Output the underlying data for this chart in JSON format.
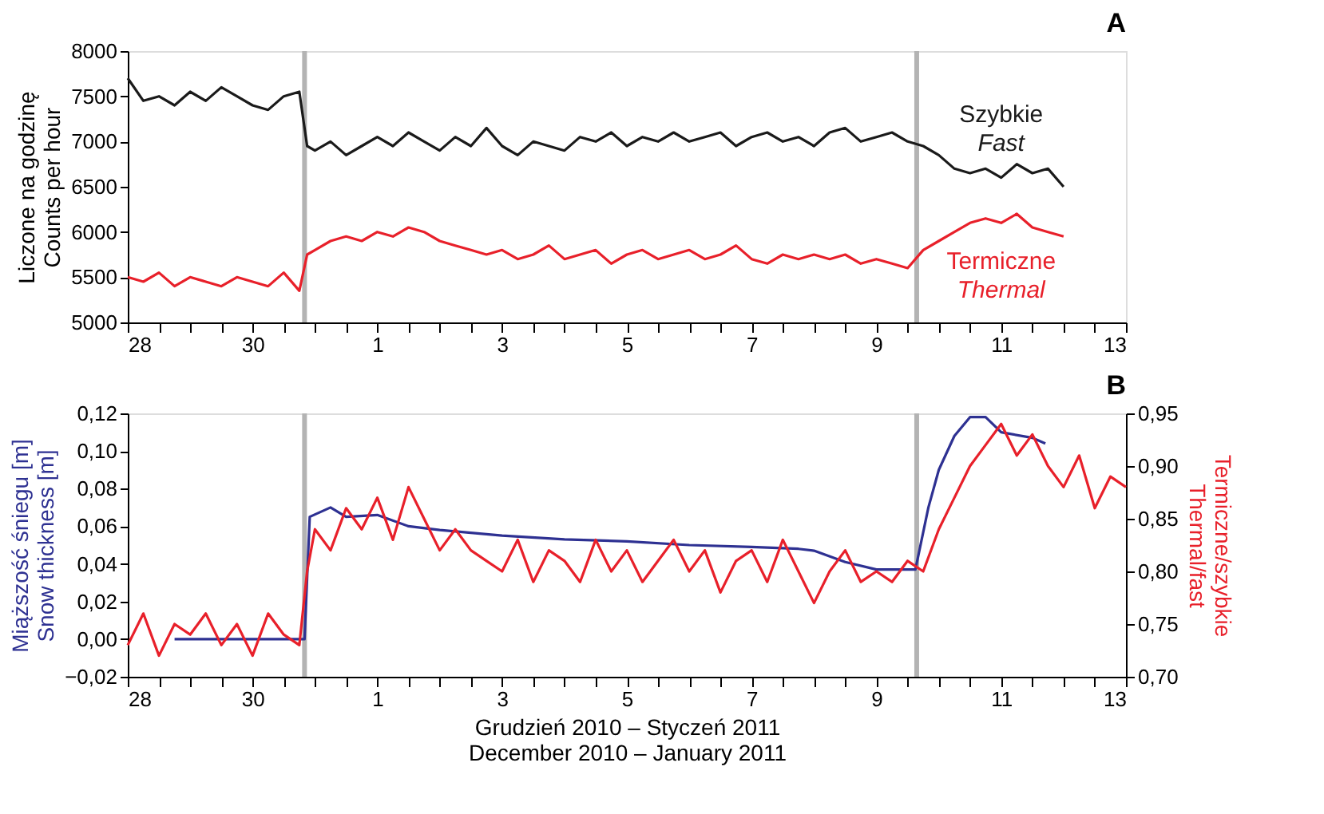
{
  "chart_data": [
    {
      "type": "line",
      "title": "A",
      "ylabel": "Liczone na godzinę\nCounts per hour",
      "x": [
        "2010-12-28T00:00",
        "2010-12-28T06:00",
        "2010-12-28T12:00",
        "2010-12-28T18:00",
        "2010-12-29T00:00",
        "2010-12-29T06:00",
        "2010-12-29T12:00",
        "2010-12-29T18:00",
        "2010-12-30T00:00",
        "2010-12-30T06:00",
        "2010-12-30T12:00",
        "2010-12-30T18:00",
        "2010-12-30T21:00",
        "2010-12-31T00:00",
        "2010-12-31T06:00",
        "2010-12-31T12:00",
        "2010-12-31T18:00",
        "2011-01-01T00:00",
        "2011-01-01T06:00",
        "2011-01-01T12:00",
        "2011-01-01T18:00",
        "2011-01-02T00:00",
        "2011-01-02T06:00",
        "2011-01-02T12:00",
        "2011-01-02T18:00",
        "2011-01-03T00:00",
        "2011-01-03T06:00",
        "2011-01-03T12:00",
        "2011-01-03T18:00",
        "2011-01-04T00:00",
        "2011-01-04T06:00",
        "2011-01-04T12:00",
        "2011-01-04T18:00",
        "2011-01-05T00:00",
        "2011-01-05T06:00",
        "2011-01-05T12:00",
        "2011-01-05T18:00",
        "2011-01-06T00:00",
        "2011-01-06T06:00",
        "2011-01-06T12:00",
        "2011-01-06T18:00",
        "2011-01-07T00:00",
        "2011-01-07T06:00",
        "2011-01-07T12:00",
        "2011-01-07T18:00",
        "2011-01-08T00:00",
        "2011-01-08T06:00",
        "2011-01-08T12:00",
        "2011-01-08T18:00",
        "2011-01-09T00:00",
        "2011-01-09T06:00",
        "2011-01-09T12:00",
        "2011-01-09T18:00",
        "2011-01-10T00:00",
        "2011-01-10T06:00",
        "2011-01-10T12:00",
        "2011-01-10T18:00",
        "2011-01-11T00:00",
        "2011-01-11T06:00",
        "2011-01-11T12:00",
        "2011-01-11T18:00",
        "2011-01-12T00:00"
      ],
      "series": [
        {
          "name": "Szybkie\nFast",
          "color": "#1a1a1a",
          "values": [
            7700,
            7450,
            7500,
            7400,
            7550,
            7450,
            7600,
            7500,
            7400,
            7350,
            7500,
            7550,
            6950,
            6900,
            7000,
            6850,
            6950,
            7050,
            6950,
            7100,
            7000,
            6900,
            7050,
            6950,
            7150,
            6950,
            6850,
            7000,
            6950,
            6900,
            7050,
            7000,
            7100,
            6950,
            7050,
            7000,
            7100,
            7000,
            7050,
            7100,
            6950,
            7050,
            7100,
            7000,
            7050,
            6950,
            7100,
            7150,
            7000,
            7050,
            7100,
            7000,
            6950,
            6850,
            6700,
            6650,
            6700,
            6600,
            6750,
            6650,
            6700,
            6500
          ]
        },
        {
          "name": "Termiczne\nThermal",
          "color": "#e8202a",
          "values": [
            5500,
            5450,
            5550,
            5400,
            5500,
            5450,
            5400,
            5500,
            5450,
            5400,
            5550,
            5350,
            5750,
            5800,
            5900,
            5950,
            5900,
            6000,
            5950,
            6050,
            6000,
            5900,
            5850,
            5800,
            5750,
            5800,
            5700,
            5750,
            5850,
            5700,
            5750,
            5800,
            5650,
            5750,
            5800,
            5700,
            5750,
            5800,
            5700,
            5750,
            5850,
            5700,
            5650,
            5750,
            5700,
            5750,
            5700,
            5750,
            5650,
            5700,
            5650,
            5600,
            5800,
            5900,
            6000,
            6100,
            6150,
            6100,
            6200,
            6050,
            6000,
            5950
          ]
        }
      ],
      "xlim": [
        "2010-12-28",
        "2011-01-13"
      ],
      "xticks": [
        {
          "value": "2010-12-28",
          "label": "28"
        },
        {
          "value": "2010-12-28T12:00",
          "label": null
        },
        {
          "value": "2010-12-29",
          "label": null
        },
        {
          "value": "2010-12-29T12:00",
          "label": null
        },
        {
          "value": "2010-12-30",
          "label": "30"
        },
        {
          "value": "2010-12-30T12:00",
          "label": null
        },
        {
          "value": "2010-12-31",
          "label": null
        },
        {
          "value": "2010-12-31T12:00",
          "label": null
        },
        {
          "value": "2011-01-01",
          "label": "1"
        },
        {
          "value": "2011-01-01T12:00",
          "label": null
        },
        {
          "value": "2011-01-02",
          "label": null
        },
        {
          "value": "2011-01-02T12:00",
          "label": null
        },
        {
          "value": "2011-01-03",
          "label": "3"
        },
        {
          "value": "2011-01-03T12:00",
          "label": null
        },
        {
          "value": "2011-01-04",
          "label": null
        },
        {
          "value": "2011-01-04T12:00",
          "label": null
        },
        {
          "value": "2011-01-05",
          "label": "5"
        },
        {
          "value": "2011-01-05T12:00",
          "label": null
        },
        {
          "value": "2011-01-06",
          "label": null
        },
        {
          "value": "2011-01-06T12:00",
          "label": null
        },
        {
          "value": "2011-01-07",
          "label": "7"
        },
        {
          "value": "2011-01-07T12:00",
          "label": null
        },
        {
          "value": "2011-01-08",
          "label": null
        },
        {
          "value": "2011-01-08T12:00",
          "label": null
        },
        {
          "value": "2011-01-09",
          "label": "9"
        },
        {
          "value": "2011-01-09T12:00",
          "label": null
        },
        {
          "value": "2011-01-10",
          "label": null
        },
        {
          "value": "2011-01-10T12:00",
          "label": null
        },
        {
          "value": "2011-01-11",
          "label": "11"
        },
        {
          "value": "2011-01-11T12:00",
          "label": null
        },
        {
          "value": "2011-01-12",
          "label": null
        },
        {
          "value": "2011-01-12T12:00",
          "label": null
        },
        {
          "value": "2011-01-13",
          "label": "13"
        }
      ],
      "ylim": [
        5000,
        8000
      ],
      "yticks": [
        5000,
        5500,
        6000,
        6500,
        7000,
        7500,
        8000
      ],
      "ref_lines": [
        {
          "axis": "x",
          "value": "2010-12-30T20:00",
          "label": null,
          "color": "#b3b3b3"
        },
        {
          "axis": "x",
          "value": "2011-01-09T15:30",
          "label": null,
          "color": "#b3b3b3"
        }
      ]
    },
    {
      "type": "line",
      "title": "B",
      "xlabel": "Grudzień 2010 – Styczeń 2011\nDecember 2010 – January 2011",
      "ylabel": "Miąższość śniegu [m]\nSnow thickness [m]",
      "y2label": "Termiczne/szybkie\nThermal/fast",
      "series": [
        {
          "color": "#2e3192",
          "x": [
            "2010-12-28T18:00",
            "2010-12-30T20:00",
            "2010-12-30T22:00",
            "2010-12-31T06:00",
            "2010-12-31T12:00",
            "2011-01-01T00:00",
            "2011-01-01T12:00",
            "2011-01-02T00:00",
            "2011-01-03T00:00",
            "2011-01-04T00:00",
            "2011-01-05T00:00",
            "2011-01-06T00:00",
            "2011-01-07T00:00",
            "2011-01-07T18:00",
            "2011-01-08T00:00",
            "2011-01-08T12:00",
            "2011-01-09T00:00",
            "2011-01-09T15:00",
            "2011-01-09T20:00",
            "2011-01-10T00:00",
            "2011-01-10T06:00",
            "2011-01-10T12:00",
            "2011-01-10T18:00",
            "2011-01-11T00:00",
            "2011-01-11T12:00",
            "2011-01-11T17:00"
          ],
          "values": [
            0.0,
            0.0,
            0.065,
            0.07,
            0.065,
            0.066,
            0.06,
            0.058,
            0.055,
            0.053,
            0.052,
            0.05,
            0.049,
            0.048,
            0.047,
            0.041,
            0.037,
            0.037,
            0.07,
            0.09,
            0.108,
            0.118,
            0.118,
            0.11,
            0.107,
            0.104
          ]
        },
        {
          "color": "#e8202a",
          "axis": "y2",
          "x": [
            "2010-12-28T00:00",
            "2010-12-28T06:00",
            "2010-12-28T12:00",
            "2010-12-28T18:00",
            "2010-12-29T00:00",
            "2010-12-29T06:00",
            "2010-12-29T12:00",
            "2010-12-29T18:00",
            "2010-12-30T00:00",
            "2010-12-30T06:00",
            "2010-12-30T12:00",
            "2010-12-30T18:00",
            "2010-12-30T21:00",
            "2010-12-31T00:00",
            "2010-12-31T06:00",
            "2010-12-31T12:00",
            "2010-12-31T18:00",
            "2011-01-01T00:00",
            "2011-01-01T06:00",
            "2011-01-01T12:00",
            "2011-01-01T18:00",
            "2011-01-02T00:00",
            "2011-01-02T06:00",
            "2011-01-02T12:00",
            "2011-01-02T18:00",
            "2011-01-03T00:00",
            "2011-01-03T06:00",
            "2011-01-03T12:00",
            "2011-01-03T18:00",
            "2011-01-04T00:00",
            "2011-01-04T06:00",
            "2011-01-04T12:00",
            "2011-01-04T18:00",
            "2011-01-05T00:00",
            "2011-01-05T06:00",
            "2011-01-05T12:00",
            "2011-01-05T18:00",
            "2011-01-06T00:00",
            "2011-01-06T06:00",
            "2011-01-06T12:00",
            "2011-01-06T18:00",
            "2011-01-07T00:00",
            "2011-01-07T06:00",
            "2011-01-07T12:00",
            "2011-01-07T18:00",
            "2011-01-08T00:00",
            "2011-01-08T06:00",
            "2011-01-08T12:00",
            "2011-01-08T18:00",
            "2011-01-09T00:00",
            "2011-01-09T06:00",
            "2011-01-09T12:00",
            "2011-01-09T18:00",
            "2011-01-10T00:00",
            "2011-01-10T06:00",
            "2011-01-10T12:00",
            "2011-01-10T18:00",
            "2011-01-11T00:00",
            "2011-01-11T06:00",
            "2011-01-11T12:00",
            "2011-01-11T18:00",
            "2011-01-12T00:00",
            "2011-01-12T06:00",
            "2011-01-12T12:00",
            "2011-01-12T18:00",
            "2011-01-13T00:00"
          ],
          "values": [
            0.73,
            0.76,
            0.72,
            0.75,
            0.74,
            0.76,
            0.73,
            0.75,
            0.72,
            0.76,
            0.74,
            0.73,
            0.8,
            0.84,
            0.82,
            0.86,
            0.84,
            0.87,
            0.83,
            0.88,
            0.85,
            0.82,
            0.84,
            0.82,
            0.81,
            0.8,
            0.83,
            0.79,
            0.82,
            0.81,
            0.79,
            0.83,
            0.8,
            0.82,
            0.79,
            0.81,
            0.83,
            0.8,
            0.82,
            0.78,
            0.81,
            0.82,
            0.79,
            0.83,
            0.8,
            0.77,
            0.8,
            0.82,
            0.79,
            0.8,
            0.79,
            0.81,
            0.8,
            0.84,
            0.87,
            0.9,
            0.92,
            0.94,
            0.91,
            0.93,
            0.9,
            0.88,
            0.91,
            0.86,
            0.89,
            0.88
          ]
        }
      ],
      "xlim": [
        "2010-12-28",
        "2011-01-13"
      ],
      "xticks": [
        {
          "value": "2010-12-28",
          "label": "28"
        },
        {
          "value": "2010-12-28T12:00",
          "label": null
        },
        {
          "value": "2010-12-29",
          "label": null
        },
        {
          "value": "2010-12-29T12:00",
          "label": null
        },
        {
          "value": "2010-12-30",
          "label": "30"
        },
        {
          "value": "2010-12-30T12:00",
          "label": null
        },
        {
          "value": "2010-12-31",
          "label": null
        },
        {
          "value": "2010-12-31T12:00",
          "label": null
        },
        {
          "value": "2011-01-01",
          "label": "1"
        },
        {
          "value": "2011-01-01T12:00",
          "label": null
        },
        {
          "value": "2011-01-02",
          "label": null
        },
        {
          "value": "2011-01-02T12:00",
          "label": null
        },
        {
          "value": "2011-01-03",
          "label": "3"
        },
        {
          "value": "2011-01-03T12:00",
          "label": null
        },
        {
          "value": "2011-01-04",
          "label": null
        },
        {
          "value": "2011-01-04T12:00",
          "label": null
        },
        {
          "value": "2011-01-05",
          "label": "5"
        },
        {
          "value": "2011-01-05T12:00",
          "label": null
        },
        {
          "value": "2011-01-06",
          "label": null
        },
        {
          "value": "2011-01-06T12:00",
          "label": null
        },
        {
          "value": "2011-01-07",
          "label": "7"
        },
        {
          "value": "2011-01-07T12:00",
          "label": null
        },
        {
          "value": "2011-01-08",
          "label": null
        },
        {
          "value": "2011-01-08T12:00",
          "label": null
        },
        {
          "value": "2011-01-09",
          "label": "9"
        },
        {
          "value": "2011-01-09T12:00",
          "label": null
        },
        {
          "value": "2011-01-10",
          "label": null
        },
        {
          "value": "2011-01-10T12:00",
          "label": null
        },
        {
          "value": "2011-01-11",
          "label": "11"
        },
        {
          "value": "2011-01-11T12:00",
          "label": null
        },
        {
          "value": "2011-01-12",
          "label": null
        },
        {
          "value": "2011-01-12T12:00",
          "label": null
        },
        {
          "value": "2011-01-13",
          "label": "13"
        }
      ],
      "ylim": [
        -0.02,
        0.12
      ],
      "yticks": [
        {
          "value": -0.02,
          "label": "−0,02"
        },
        {
          "value": 0.0,
          "label": "0,00"
        },
        {
          "value": 0.02,
          "label": "0,02"
        },
        {
          "value": 0.04,
          "label": "0,04"
        },
        {
          "value": 0.06,
          "label": "0,06"
        },
        {
          "value": 0.08,
          "label": "0,08"
        },
        {
          "value": 0.1,
          "label": "0,10"
        },
        {
          "value": 0.12,
          "label": "0,12"
        }
      ],
      "y2lim": [
        0.7,
        0.95
      ],
      "y2ticks": [
        {
          "value": 0.7,
          "label": "0,70"
        },
        {
          "value": 0.75,
          "label": "0,75"
        },
        {
          "value": 0.8,
          "label": "0,80"
        },
        {
          "value": 0.85,
          "label": "0,85"
        },
        {
          "value": 0.9,
          "label": "0,90"
        },
        {
          "value": 0.95,
          "label": "0,95"
        }
      ],
      "ref_lines": [
        {
          "axis": "x",
          "value": "2010-12-30T20:00",
          "label": null,
          "color": "#b3b3b3"
        },
        {
          "axis": "x",
          "value": "2011-01-09T15:30",
          "label": null,
          "color": "#b3b3b3"
        }
      ]
    }
  ]
}
